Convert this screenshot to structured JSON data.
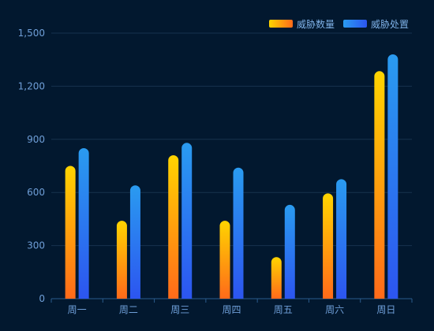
{
  "chart_data": {
    "type": "bar",
    "categories": [
      "周一",
      "周二",
      "周三",
      "周四",
      "周五",
      "周六",
      "周日"
    ],
    "series": [
      {
        "name": "威胁数量",
        "values": [
          750,
          440,
          810,
          440,
          235,
          595,
          1285
        ],
        "gradient": {
          "top": "#ffd400",
          "bottom": "#ff6a1a"
        }
      },
      {
        "name": "威胁处置",
        "values": [
          850,
          640,
          880,
          740,
          530,
          675,
          1380
        ],
        "gradient": {
          "top": "#2a9bf0",
          "bottom": "#2c55f0"
        }
      }
    ],
    "ylim": [
      0,
      1500
    ],
    "yticks": [
      0,
      300,
      600,
      900,
      1200,
      1500
    ],
    "ytick_labels": [
      "0",
      "300",
      "600",
      "900",
      "1,200",
      "1,500"
    ],
    "grid": true,
    "legend_position": "top-right",
    "title": "",
    "xlabel": "",
    "ylabel": ""
  },
  "colors": {
    "background": "#02182f",
    "axis_label": "#6f9fd8",
    "grid": "#17324f",
    "axis_line": "#2b5b8c",
    "legend_text": "#7eb0e6"
  }
}
